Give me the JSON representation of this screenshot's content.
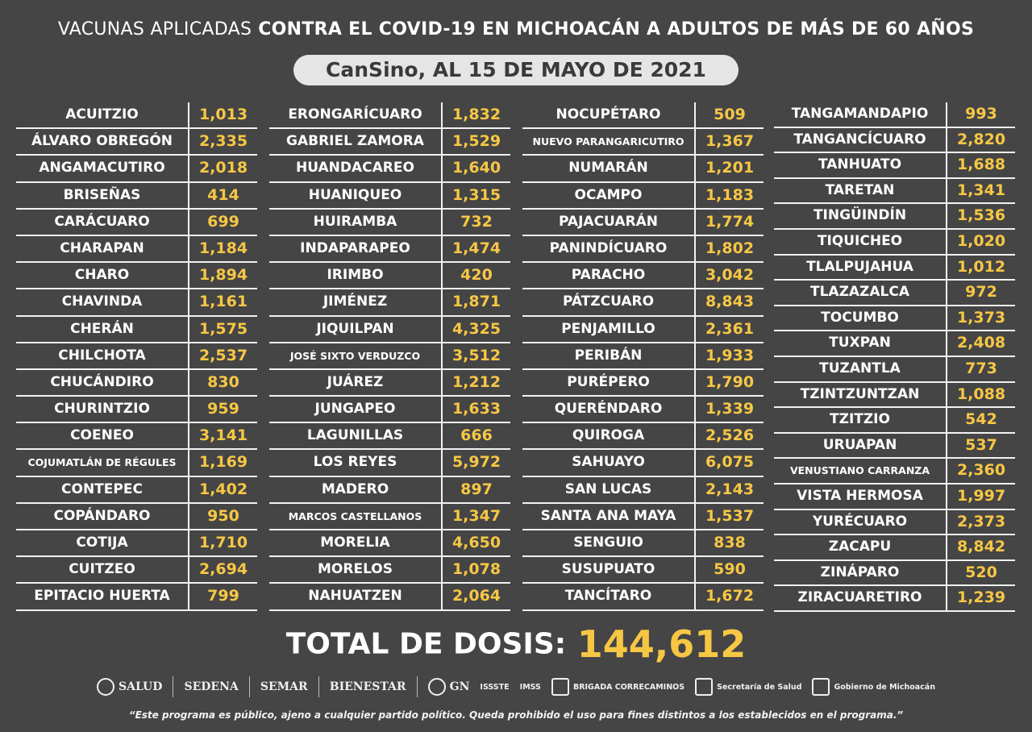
{
  "title": {
    "light": "VACUNAS APLICADAS",
    "bold": "CONTRA EL COVID-19 EN MICHOACÁN A ADULTOS DE MÁS DE 60 AÑOS"
  },
  "subtitle": "CanSino, AL 15 DE MAYO DE 2021",
  "columns": [
    [
      {
        "name": "ACUITZIO",
        "value": "1,013"
      },
      {
        "name": "ÁLVARO OBREGÓN",
        "value": "2,335"
      },
      {
        "name": "ANGAMACUTIRO",
        "value": "2,018"
      },
      {
        "name": "BRISEÑAS",
        "value": "414"
      },
      {
        "name": "CARÁCUARO",
        "value": "699"
      },
      {
        "name": "CHARAPAN",
        "value": "1,184"
      },
      {
        "name": "CHARO",
        "value": "1,894"
      },
      {
        "name": "CHAVINDA",
        "value": "1,161"
      },
      {
        "name": "CHERÁN",
        "value": "1,575"
      },
      {
        "name": "CHILCHOTA",
        "value": "2,537"
      },
      {
        "name": "CHUCÁNDIRO",
        "value": "830"
      },
      {
        "name": "CHURINTZIO",
        "value": "959"
      },
      {
        "name": "COENEO",
        "value": "3,141"
      },
      {
        "name": "COJUMATLÁN DE RÉGULES",
        "value": "1,169"
      },
      {
        "name": "CONTEPEC",
        "value": "1,402"
      },
      {
        "name": "COPÁNDARO",
        "value": "950"
      },
      {
        "name": "COTIJA",
        "value": "1,710"
      },
      {
        "name": "CUITZEO",
        "value": "2,694"
      },
      {
        "name": "EPITACIO HUERTA",
        "value": "799"
      }
    ],
    [
      {
        "name": "ERONGARÍCUARO",
        "value": "1,832"
      },
      {
        "name": "GABRIEL ZAMORA",
        "value": "1,529"
      },
      {
        "name": "HUANDACAREO",
        "value": "1,640"
      },
      {
        "name": "HUANIQUEO",
        "value": "1,315"
      },
      {
        "name": "HUIRAMBA",
        "value": "732"
      },
      {
        "name": "INDAPARAPEO",
        "value": "1,474"
      },
      {
        "name": "IRIMBO",
        "value": "420"
      },
      {
        "name": "JIMÉNEZ",
        "value": "1,871"
      },
      {
        "name": "JIQUILPAN",
        "value": "4,325"
      },
      {
        "name": "JOSÉ SIXTO VERDUZCO",
        "value": "3,512"
      },
      {
        "name": "JUÁREZ",
        "value": "1,212"
      },
      {
        "name": "JUNGAPEO",
        "value": "1,633"
      },
      {
        "name": "LAGUNILLAS",
        "value": "666"
      },
      {
        "name": "LOS REYES",
        "value": "5,972"
      },
      {
        "name": "MADERO",
        "value": "897"
      },
      {
        "name": "MARCOS CASTELLANOS",
        "value": "1,347"
      },
      {
        "name": "MORELIA",
        "value": "4,650"
      },
      {
        "name": "MORELOS",
        "value": "1,078"
      },
      {
        "name": "NAHUATZEN",
        "value": "2,064"
      }
    ],
    [
      {
        "name": "NOCUPÉTARO",
        "value": "509"
      },
      {
        "name": "NUEVO PARANGARICUTIRO",
        "value": "1,367"
      },
      {
        "name": "NUMARÁN",
        "value": "1,201"
      },
      {
        "name": "OCAMPO",
        "value": "1,183"
      },
      {
        "name": "PAJACUARÁN",
        "value": "1,774"
      },
      {
        "name": "PANINDÍCUARO",
        "value": "1,802"
      },
      {
        "name": "PARACHO",
        "value": "3,042"
      },
      {
        "name": "PÁTZCUARO",
        "value": "8,843"
      },
      {
        "name": "PENJAMILLO",
        "value": "2,361"
      },
      {
        "name": "PERIBÁN",
        "value": "1,933"
      },
      {
        "name": "PURÉPERO",
        "value": "1,790"
      },
      {
        "name": "QUERÉNDARO",
        "value": "1,339"
      },
      {
        "name": "QUIROGA",
        "value": "2,526"
      },
      {
        "name": "SAHUAYO",
        "value": "6,075"
      },
      {
        "name": "SAN LUCAS",
        "value": "2,143"
      },
      {
        "name": "SANTA ANA MAYA",
        "value": "1,537"
      },
      {
        "name": "SENGUIO",
        "value": "838"
      },
      {
        "name": "SUSUPUATO",
        "value": "590"
      },
      {
        "name": "TANCÍTARO",
        "value": "1,672"
      }
    ],
    [
      {
        "name": "TANGAMANDAPIO",
        "value": "993"
      },
      {
        "name": "TANGANCÍCUARO",
        "value": "2,820"
      },
      {
        "name": "TANHUATO",
        "value": "1,688"
      },
      {
        "name": "TARETAN",
        "value": "1,341"
      },
      {
        "name": "TINGÜINDÍN",
        "value": "1,536"
      },
      {
        "name": "TIQUICHEO",
        "value": "1,020"
      },
      {
        "name": "TLALPUJAHUA",
        "value": "1,012"
      },
      {
        "name": "TLAZAZALCA",
        "value": "972"
      },
      {
        "name": "TOCUMBO",
        "value": "1,373"
      },
      {
        "name": "TUXPAN",
        "value": "2,408"
      },
      {
        "name": "TUZANTLA",
        "value": "773"
      },
      {
        "name": "TZINTZUNTZAN",
        "value": "1,088"
      },
      {
        "name": "TZITZIO",
        "value": "542"
      },
      {
        "name": "URUAPAN",
        "value": "537"
      },
      {
        "name": "VENUSTIANO CARRANZA",
        "value": "2,360"
      },
      {
        "name": "VISTA HERMOSA",
        "value": "1,997"
      },
      {
        "name": "YURÉCUARO",
        "value": "2,373"
      },
      {
        "name": "ZACAPU",
        "value": "8,842"
      },
      {
        "name": "ZINÁPARO",
        "value": "520"
      },
      {
        "name": "ZIRACUARETIRO",
        "value": "1,239"
      }
    ]
  ],
  "total": {
    "label": "TOTAL DE DOSIS:",
    "value": "144,612"
  },
  "logos": [
    "SALUD",
    "SEDENA",
    "SEMAR",
    "BIENESTAR",
    "GN",
    "ISSSTE",
    "IMSS",
    "BRIGADA CORRECAMINOS",
    "Secretaría de Salud",
    "Gobierno de Michoacán"
  ],
  "footer": "“Este programa es público, ajeno a cualquier partido político. Queda prohibido el uso para fines distintos a los establecidos en el programa.”",
  "colors": {
    "background": "#454546",
    "accent": "#f7c744",
    "text": "#ffffff"
  }
}
